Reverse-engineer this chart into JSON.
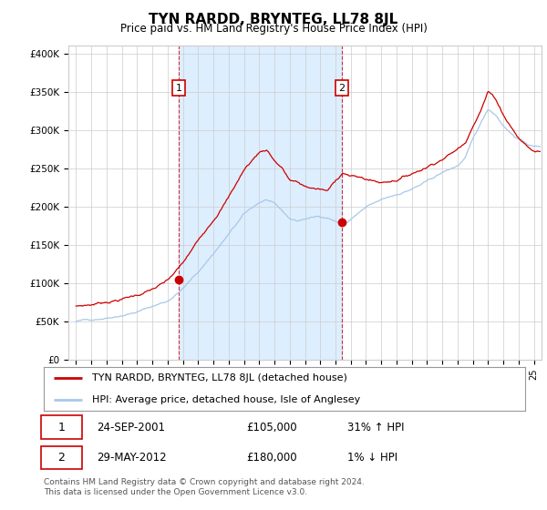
{
  "title": "TYN RARDD, BRYNTEG, LL78 8JL",
  "subtitle": "Price paid vs. HM Land Registry's House Price Index (HPI)",
  "legend_line1": "TYN RARDD, BRYNTEG, LL78 8JL (detached house)",
  "legend_line2": "HPI: Average price, detached house, Isle of Anglesey",
  "transaction1_date": "24-SEP-2001",
  "transaction1_price": "£105,000",
  "transaction1_hpi": "31% ↑ HPI",
  "transaction1_year": 2001.73,
  "transaction1_value": 105000,
  "transaction2_date": "29-MAY-2012",
  "transaction2_price": "£180,000",
  "transaction2_hpi": "1% ↓ HPI",
  "transaction2_year": 2012.41,
  "transaction2_value": 180000,
  "hpi_color": "#a8c8e8",
  "price_color": "#cc0000",
  "dashed_line_color": "#cc0000",
  "shade_color": "#ddeeff",
  "background_color": "#ffffff",
  "grid_color": "#cccccc",
  "ylim": [
    0,
    410000
  ],
  "yticks": [
    0,
    50000,
    100000,
    150000,
    200000,
    250000,
    300000,
    350000,
    400000
  ],
  "ytick_labels": [
    "£0",
    "£50K",
    "£100K",
    "£150K",
    "£200K",
    "£250K",
    "£300K",
    "£350K",
    "£400K"
  ],
  "footer": "Contains HM Land Registry data © Crown copyright and database right 2024.\nThis data is licensed under the Open Government Licence v3.0.",
  "xlim_start": 1994.5,
  "xlim_end": 2025.5,
  "hpi_knots_x": [
    1995,
    1996,
    1997,
    1998,
    1999,
    2000,
    2001,
    2002,
    2003,
    2004,
    2005,
    2006,
    2007,
    2007.5,
    2008,
    2009,
    2009.5,
    2010,
    2011,
    2011.5,
    2012,
    2012.5,
    2013,
    2013.5,
    2014,
    2015,
    2016,
    2017,
    2018,
    2019,
    2020,
    2020.5,
    2021,
    2021.5,
    2022,
    2022.5,
    2023,
    2023.5,
    2024,
    2024.5,
    2025
  ],
  "hpi_knots_y": [
    50000,
    52000,
    56000,
    61000,
    66000,
    73000,
    80000,
    97000,
    118000,
    143000,
    168000,
    193000,
    208000,
    212000,
    205000,
    185000,
    182000,
    185000,
    188000,
    187000,
    183000,
    178000,
    185000,
    193000,
    200000,
    208000,
    215000,
    223000,
    232000,
    243000,
    252000,
    262000,
    285000,
    305000,
    325000,
    318000,
    305000,
    295000,
    288000,
    282000,
    278000
  ],
  "price_knots_x": [
    1995,
    1996,
    1997,
    1998,
    1999,
    2000,
    2001,
    2002,
    2003,
    2004,
    2005,
    2006,
    2007,
    2007.5,
    2008,
    2008.5,
    2009,
    2009.5,
    2010,
    2011,
    2011.5,
    2012,
    2012.5,
    2013,
    2014,
    2015,
    2016,
    2017,
    2018,
    2019,
    2020,
    2020.5,
    2021,
    2021.5,
    2022,
    2022.5,
    2023,
    2023.5,
    2024,
    2024.5,
    2025
  ],
  "price_knots_y": [
    70000,
    72000,
    76000,
    80000,
    85000,
    92000,
    101000,
    122000,
    150000,
    180000,
    210000,
    245000,
    268000,
    272000,
    258000,
    248000,
    232000,
    228000,
    222000,
    218000,
    215000,
    228000,
    240000,
    235000,
    230000,
    225000,
    230000,
    238000,
    248000,
    260000,
    272000,
    280000,
    305000,
    325000,
    350000,
    340000,
    320000,
    305000,
    290000,
    280000,
    272000
  ]
}
